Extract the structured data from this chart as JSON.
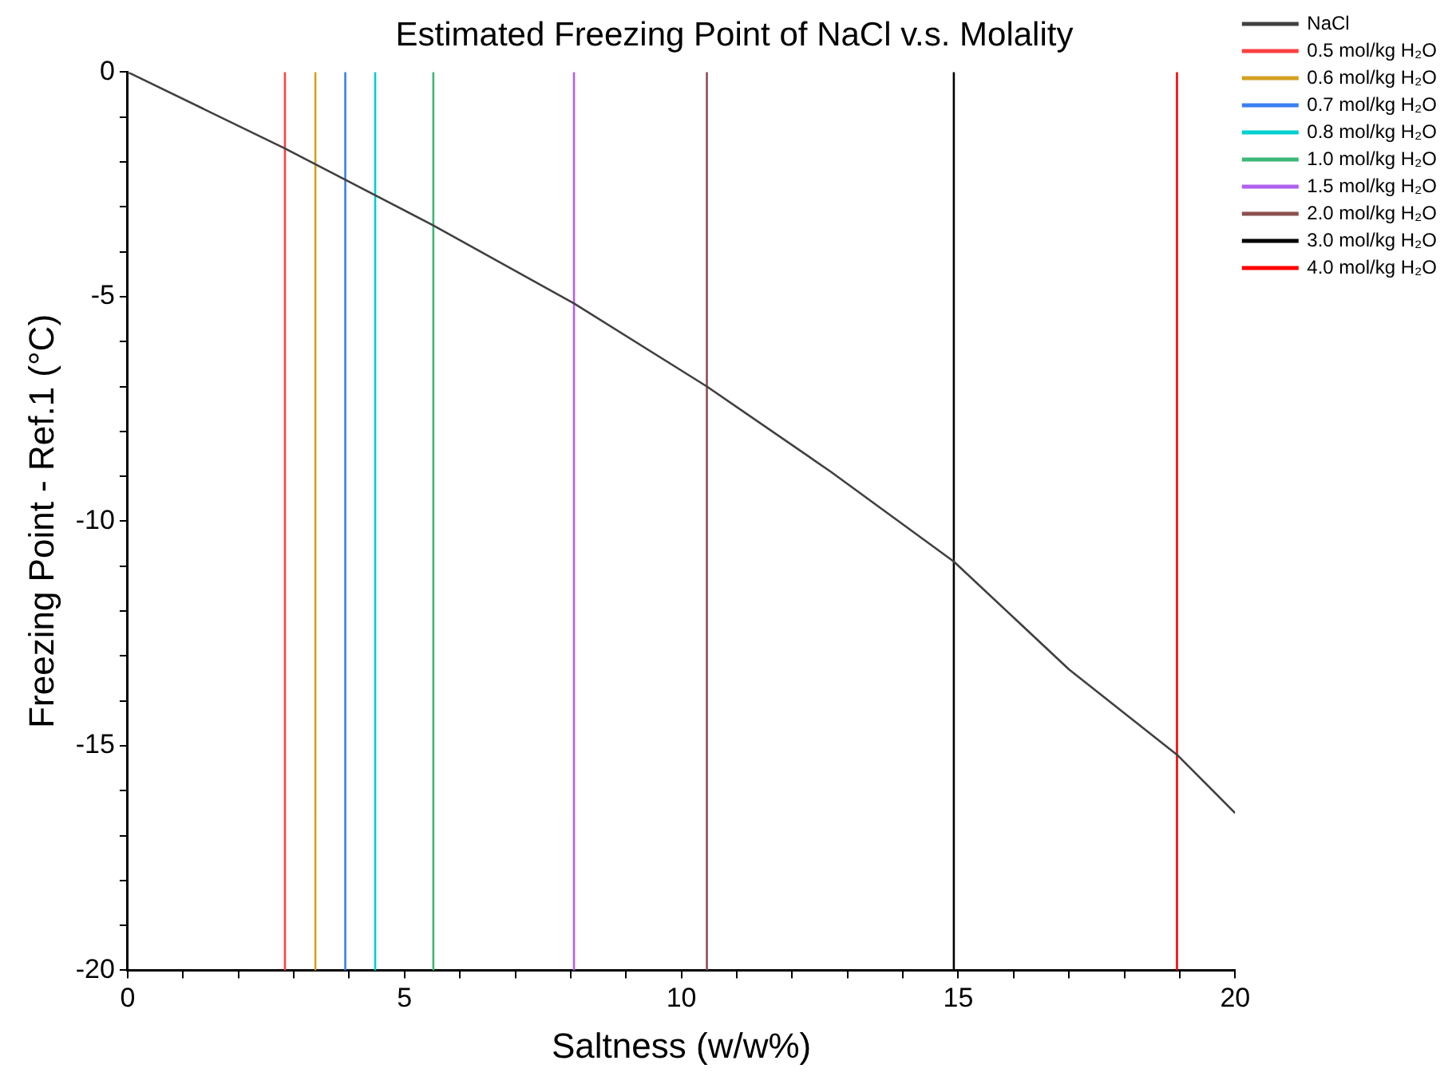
{
  "chart_data": {
    "type": "line",
    "title": "Estimated Freezing Point of NaCl v.s. Molality",
    "xlabel": "Saltness (w/w%)",
    "ylabel": "Freezing Point - Ref.1 (°C)",
    "xlim": [
      0,
      20
    ],
    "ylim": [
      -20,
      0
    ],
    "xticks": [
      0,
      {
        "value": 1,
        "label": null
      },
      {
        "value": 2,
        "label": null
      },
      {
        "value": 3,
        "label": null
      },
      {
        "value": 4,
        "label": null
      },
      5,
      {
        "value": 6,
        "label": null
      },
      {
        "value": 7,
        "label": null
      },
      {
        "value": 8,
        "label": null
      },
      {
        "value": 9,
        "label": null
      },
      10,
      {
        "value": 11,
        "label": null
      },
      {
        "value": 12,
        "label": null
      },
      {
        "value": 13,
        "label": null
      },
      {
        "value": 14,
        "label": null
      },
      15,
      {
        "value": 16,
        "label": null
      },
      {
        "value": 17,
        "label": null
      },
      {
        "value": 18,
        "label": null
      },
      {
        "value": 19,
        "label": null
      },
      20
    ],
    "yticks": [
      -20,
      {
        "value": -19,
        "label": null
      },
      {
        "value": -18,
        "label": null
      },
      {
        "value": -17,
        "label": null
      },
      {
        "value": -16,
        "label": null
      },
      -15,
      {
        "value": -14,
        "label": null
      },
      {
        "value": -13,
        "label": null
      },
      {
        "value": -12,
        "label": null
      },
      {
        "value": -11,
        "label": null
      },
      -10,
      {
        "value": -9,
        "label": null
      },
      {
        "value": -8,
        "label": null
      },
      {
        "value": -7,
        "label": null
      },
      {
        "value": -6,
        "label": null
      },
      -5,
      {
        "value": -4,
        "label": null
      },
      {
        "value": -3,
        "label": null
      },
      {
        "value": -2,
        "label": null
      },
      {
        "value": -1,
        "label": null
      },
      0
    ],
    "grid": false,
    "legend": "top right",
    "marker": "none",
    "line_style": "solid",
    "series": [
      {
        "name": "NaCl",
        "color": "#404040",
        "x": [
          0,
          2.84,
          5.5,
          8.06,
          10.46,
          12.7,
          14.92,
          17,
          18.95,
          20
        ],
        "values": [
          0,
          -1.7,
          -3.4,
          -5.15,
          -7.0,
          -8.9,
          -10.9,
          -13.3,
          -15.2,
          -16.5
        ]
      },
      {
        "name": "0.5 mol/kg H₂O",
        "color": "#ff4040",
        "x": [
          2.84,
          2.84
        ],
        "values": [
          0,
          -20
        ]
      },
      {
        "name": "0.6 mol/kg H₂O",
        "color": "#d4a020",
        "x": [
          3.39,
          3.39
        ],
        "values": [
          0,
          -20
        ]
      },
      {
        "name": "0.7 mol/kg H₂O",
        "color": "#3a7ff0",
        "x": [
          3.93,
          3.93
        ],
        "values": [
          0,
          -20
        ]
      },
      {
        "name": "0.8 mol/kg H₂O",
        "color": "#00d0d0",
        "x": [
          4.47,
          4.47
        ],
        "values": [
          0,
          -20
        ]
      },
      {
        "name": "1.0 mol/kg H₂O",
        "color": "#3cb878",
        "x": [
          5.52,
          5.52
        ],
        "values": [
          0,
          -20
        ]
      },
      {
        "name": "1.5 mol/kg H₂O",
        "color": "#b060f0",
        "x": [
          8.06,
          8.06
        ],
        "values": [
          0,
          -20
        ]
      },
      {
        "name": "2.0 mol/kg H₂O",
        "color": "#8b5050",
        "x": [
          10.46,
          10.46
        ],
        "values": [
          0,
          -20
        ]
      },
      {
        "name": "3.0 mol/kg H₂O",
        "color": "#000000",
        "x": [
          14.92,
          14.92
        ],
        "values": [
          0,
          -20
        ]
      },
      {
        "name": "4.0 mol/kg H₂O",
        "color": "#ff0000",
        "x": [
          18.95,
          18.95
        ],
        "values": [
          0,
          -20
        ]
      }
    ]
  }
}
